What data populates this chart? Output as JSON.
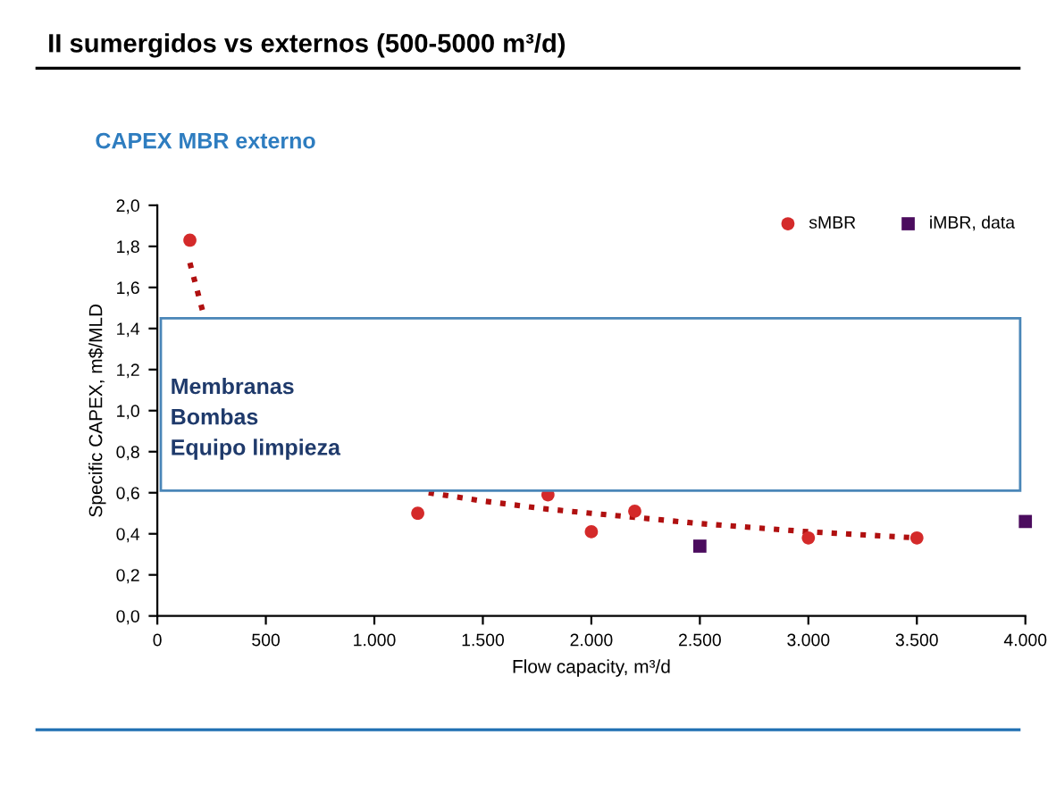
{
  "chart_data": {
    "type": "scatter",
    "title": "II sumergidos vs externos (500-5000 m³/d)",
    "subtitle": "CAPEX MBR externo",
    "xlabel": "Flow capacity, m³/d",
    "ylabel": "Specific CAPEX, m$/MLD",
    "annotations": [
      "Membranas\nBombas\nEquipo limpieza"
    ],
    "series": [
      {
        "name": "sMBR",
        "color": "#d42a2a",
        "marker": "circle",
        "x": [
          150,
          1200,
          1800,
          2000,
          2200,
          3000,
          3500
        ],
        "values": [
          1.83,
          0.5,
          0.59,
          0.41,
          0.51,
          0.38,
          0.38
        ]
      },
      {
        "name": "iMBR, data",
        "color": "#4b0c5e",
        "marker": "square",
        "x": [
          2500,
          4000
        ],
        "values": [
          0.34,
          0.46
        ]
      },
      {
        "type": "line",
        "color": "#b01010",
        "line_style": "dotted",
        "marker": "none",
        "x": [
          150,
          175,
          200,
          215,
          700,
          1250,
          1500,
          1800,
          2000,
          2200,
          2500,
          3000,
          3500
        ],
        "values": [
          1.72,
          1.62,
          1.52,
          1.46,
          null,
          0.6,
          0.56,
          0.52,
          0.5,
          0.48,
          0.45,
          0.41,
          0.38
        ]
      }
    ],
    "xlim": [
      0,
      4000
    ],
    "ylim": [
      0,
      2
    ],
    "xticks": [
      0,
      500,
      {
        "value": 1000,
        "label": "1.000"
      },
      {
        "value": 1500,
        "label": "1.500"
      },
      {
        "value": 2000,
        "label": "2.000"
      },
      {
        "value": 2500,
        "label": "2.500"
      },
      {
        "value": 3000,
        "label": "3.000"
      },
      {
        "value": 3500,
        "label": "3.500"
      },
      {
        "value": 4000,
        "label": "4.000"
      }
    ],
    "yticks": [
      {
        "value": 0,
        "label": "0,0"
      },
      {
        "value": 0.2,
        "label": "0,2"
      },
      {
        "value": 0.4,
        "label": "0,4"
      },
      {
        "value": 0.6,
        "label": "0,6"
      },
      {
        "value": 0.8,
        "label": "0,8"
      },
      {
        "value": 1.0,
        "label": "1,0"
      },
      {
        "value": 1.2,
        "label": "1,2"
      },
      {
        "value": 1.4,
        "label": "1,4"
      },
      {
        "value": 1.6,
        "label": "1,6"
      },
      {
        "value": 1.8,
        "label": "1,8"
      },
      {
        "value": 2.0,
        "label": "2,0"
      }
    ],
    "grid": false,
    "legend": "top right"
  }
}
